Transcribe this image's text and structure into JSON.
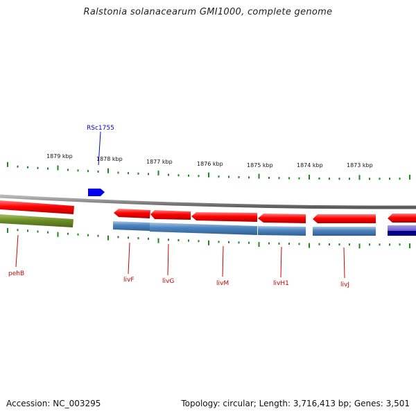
{
  "title": "Ralstonia solanacearum GMI1000, complete genome",
  "footer": {
    "accession": "Accession: NC_003295",
    "summary": "Topology: circular; Length: 3,716,413 bp; Genes: 3,501"
  },
  "scale_labels": [
    "1879 kbp",
    "1878 kbp",
    "1877 kbp",
    "1876 kbp",
    "1875 kbp",
    "1874 kbp",
    "1873 kbp"
  ],
  "gene_labels": {
    "RSc1755": "RSc1755",
    "pehB": "pehB",
    "livF": "livF",
    "livG": "livG",
    "livM": "livM",
    "livH1": "livH1",
    "livJ": "livJ"
  },
  "colors": {
    "forward_gene": "#ff1a1a",
    "reverse_gene": "#4a7fb5",
    "label_red": "#cc0000",
    "label_blue": "#0000cc",
    "tick_green": "#1a8a1a",
    "backbone": "#888888"
  }
}
